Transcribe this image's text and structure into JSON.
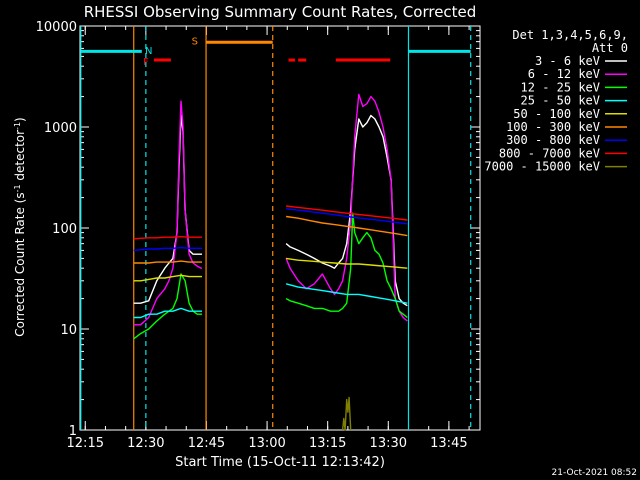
{
  "chart_data": {
    "type": "line",
    "title": "RHESSI Observing Summary Count Rates, Corrected",
    "xlabel": "Start Time (15-Oct-11 12:13:42)",
    "ylabel_main": "Corrected Count Rate (s",
    "ylabel_sup1": "-1",
    "ylabel_mid": " detector",
    "ylabel_sup2": "-1",
    "ylabel_end": ")",
    "x_scale": "time (minutes after 12:13:42)",
    "xlim": [
      0,
      99
    ],
    "y_scale": "log",
    "ylim": [
      1,
      10000
    ],
    "x_ticks": [
      {
        "t": 1.3,
        "label": "12:15"
      },
      {
        "t": 16.3,
        "label": "12:30"
      },
      {
        "t": 31.3,
        "label": "12:45"
      },
      {
        "t": 46.3,
        "label": "13:00"
      },
      {
        "t": 61.3,
        "label": "13:15"
      },
      {
        "t": 76.3,
        "label": "13:30"
      },
      {
        "t": 91.3,
        "label": "13:45"
      }
    ],
    "y_ticks": [
      {
        "v": 1,
        "label": "1"
      },
      {
        "v": 10,
        "label": "10"
      },
      {
        "v": 100,
        "label": "100"
      },
      {
        "v": 1000,
        "label": "1000"
      },
      {
        "v": 10000,
        "label": "10000"
      }
    ],
    "legend_title": "Det 1,3,4,5,6,9,",
    "legend_subtitle": "Att 0",
    "legend_position": "right",
    "date_stamp": "21-Oct-2021 08:52",
    "series": [
      {
        "name": "3 - 6 keV",
        "color": "#ffffff",
        "x": [
          13.3,
          15,
          17,
          19,
          21,
          22,
          23,
          24,
          24.5,
          25,
          25.5,
          26,
          27,
          28,
          29,
          30,
          30.2
        ],
        "y": [
          18,
          18,
          19,
          30,
          40,
          45,
          50,
          90,
          400,
          1300,
          900,
          150,
          60,
          55,
          55,
          55,
          55
        ]
      },
      {
        "name": "",
        "color": "#ffffff",
        "x": [
          51,
          52,
          54,
          56,
          58,
          60,
          62,
          63,
          64,
          65,
          66,
          67,
          68,
          69,
          70,
          71,
          72,
          73,
          74,
          75,
          76,
          77,
          78,
          79,
          80,
          81
        ],
        "y": [
          70,
          65,
          60,
          55,
          50,
          45,
          42,
          40,
          45,
          50,
          70,
          150,
          600,
          1200,
          1000,
          1100,
          1300,
          1200,
          1000,
          800,
          500,
          300,
          30,
          20,
          18,
          17
        ]
      },
      {
        "name": "6 - 12 keV",
        "color": "#ff00ff",
        "x": [
          13.3,
          15,
          17,
          19,
          21,
          22,
          23,
          24,
          24.5,
          25,
          25.5,
          26,
          27,
          28,
          29,
          30,
          30.2
        ],
        "y": [
          11,
          11,
          13,
          20,
          25,
          30,
          40,
          90,
          500,
          1800,
          1000,
          150,
          55,
          45,
          42,
          40,
          40
        ]
      },
      {
        "name": "",
        "color": "#ff00ff",
        "x": [
          51,
          52,
          54,
          56,
          58,
          60,
          62,
          63,
          64,
          65,
          66,
          67,
          68,
          69,
          70,
          71,
          72,
          73,
          74,
          75,
          76,
          77,
          78,
          79,
          80,
          81
        ],
        "y": [
          50,
          40,
          30,
          25,
          28,
          35,
          25,
          22,
          25,
          30,
          50,
          120,
          800,
          2100,
          1600,
          1700,
          2000,
          1800,
          1400,
          1000,
          600,
          300,
          20,
          15,
          13,
          12
        ]
      },
      {
        "name": "12 - 25 keV",
        "color": "#00ff00",
        "x": [
          13.3,
          15,
          17,
          19,
          21,
          22,
          23,
          24,
          25,
          26,
          27,
          28,
          29,
          30,
          30.2
        ],
        "y": [
          8,
          9,
          10,
          12,
          14,
          15,
          16,
          20,
          35,
          30,
          18,
          15,
          14,
          14,
          14
        ]
      },
      {
        "name": "",
        "color": "#00ff00",
        "x": [
          51,
          52,
          54,
          56,
          58,
          60,
          62,
          64,
          65,
          66,
          67,
          67.5,
          68,
          69,
          70,
          71,
          72,
          73,
          74,
          75,
          76,
          77,
          78,
          79,
          80,
          81
        ],
        "y": [
          20,
          19,
          18,
          17,
          16,
          16,
          15,
          15,
          16,
          18,
          40,
          140,
          90,
          70,
          80,
          90,
          80,
          60,
          55,
          45,
          30,
          25,
          20,
          15,
          14,
          13
        ]
      },
      {
        "name": "25 - 50 keV",
        "color": "#00ffff",
        "x": [
          13.3,
          15,
          17,
          19,
          21,
          23,
          25,
          27,
          29,
          30.2
        ],
        "y": [
          13,
          13,
          14,
          14,
          15,
          15,
          16,
          15,
          15,
          15
        ]
      },
      {
        "name": "",
        "color": "#00ffff",
        "x": [
          51,
          54,
          57,
          60,
          63,
          66,
          69,
          72,
          75,
          78,
          81
        ],
        "y": [
          28,
          26,
          25,
          24,
          23,
          22,
          22,
          21,
          20,
          19,
          18
        ]
      },
      {
        "name": "50 - 100 keV",
        "color": "#dddd00",
        "x": [
          13.3,
          15,
          17,
          19,
          21,
          23,
          25,
          27,
          29,
          30.2
        ],
        "y": [
          30,
          30,
          31,
          32,
          32,
          33,
          34,
          33,
          33,
          33
        ]
      },
      {
        "name": "",
        "color": "#dddd00",
        "x": [
          51,
          54,
          57,
          60,
          63,
          66,
          69,
          72,
          75,
          78,
          81
        ],
        "y": [
          50,
          48,
          47,
          46,
          45,
          44,
          44,
          43,
          42,
          41,
          40
        ]
      },
      {
        "name": "100 - 300 keV",
        "color": "#ff8800",
        "x": [
          13.3,
          15,
          17,
          19,
          21,
          23,
          25,
          27,
          29,
          30.2
        ],
        "y": [
          45,
          45,
          45,
          46,
          46,
          46,
          47,
          46,
          46,
          46
        ]
      },
      {
        "name": "",
        "color": "#ff8800",
        "x": [
          51,
          54,
          57,
          60,
          63,
          66,
          69,
          72,
          75,
          78,
          81
        ],
        "y": [
          130,
          125,
          118,
          112,
          108,
          104,
          100,
          96,
          92,
          88,
          84
        ]
      },
      {
        "name": "300 - 800 keV",
        "color": "#0000ff",
        "x": [
          13.3,
          15,
          17,
          19,
          21,
          23,
          25,
          27,
          29,
          30.2
        ],
        "y": [
          60,
          61,
          62,
          62,
          63,
          63,
          64,
          63,
          63,
          63
        ]
      },
      {
        "name": "",
        "color": "#0000ff",
        "x": [
          51,
          54,
          57,
          60,
          63,
          66,
          69,
          72,
          75,
          78,
          81
        ],
        "y": [
          155,
          150,
          145,
          140,
          135,
          130,
          126,
          122,
          118,
          114,
          110
        ]
      },
      {
        "name": "800 - 7000 keV",
        "color": "#ff0000",
        "x": [
          13.3,
          15,
          17,
          19,
          21,
          23,
          25,
          27,
          29,
          30.2
        ],
        "y": [
          78,
          79,
          80,
          80,
          81,
          81,
          82,
          81,
          81,
          81
        ]
      },
      {
        "name": "",
        "color": "#ff0000",
        "x": [
          51,
          54,
          57,
          60,
          63,
          66,
          69,
          72,
          75,
          78,
          81
        ],
        "y": [
          165,
          160,
          155,
          150,
          145,
          140,
          136,
          132,
          128,
          124,
          120
        ]
      },
      {
        "name": "7000 - 15000 keV",
        "color": "#808000",
        "x": [
          65,
          65.3,
          65.6,
          66,
          66.3,
          66.6,
          67
        ],
        "y": [
          1,
          1.3,
          1,
          2,
          1.5,
          2.1,
          1
        ]
      }
    ],
    "flag_bars": [
      {
        "label": "",
        "color": "#00e5e5",
        "x0": 0.2,
        "x1": 15.3,
        "y": 5600
      },
      {
        "label": "",
        "color": "#00e5e5",
        "x0": 81.3,
        "x1": 96.7,
        "y": 5600
      },
      {
        "label": "S",
        "color": "#ff8800",
        "x0": 31.2,
        "x1": 47.7,
        "y": 6900
      },
      {
        "label": "F",
        "color": "#ff0000",
        "x0": 18.3,
        "x1": 22.5,
        "y": 4600
      },
      {
        "label": "",
        "color": "#ff0000",
        "x0": 51.6,
        "x1": 53.2,
        "y": 4600
      },
      {
        "label": "",
        "color": "#ff0000",
        "x0": 54.0,
        "x1": 56.0,
        "y": 4600
      },
      {
        "label": "",
        "color": "#ff0000",
        "x0": 63.3,
        "x1": 76.8,
        "y": 4600
      }
    ],
    "flag_letters": [
      {
        "text": "N",
        "color": "#00e5e5",
        "t": 17.0,
        "y": 5800
      },
      {
        "text": "S",
        "color": "#ff8800",
        "t": 28.4,
        "y": 7200
      },
      {
        "text": "F",
        "color": "#ff0000",
        "t": 16.3,
        "y": 4500
      }
    ],
    "vlines": [
      {
        "t": 0.2,
        "color": "#00e5e5",
        "dash": false
      },
      {
        "t": 13.3,
        "color": "#ff8800",
        "dash": false
      },
      {
        "t": 16.3,
        "color": "#00e5e5",
        "dash": true
      },
      {
        "t": 31.2,
        "color": "#ff8800",
        "dash": false
      },
      {
        "t": 47.7,
        "color": "#ff8800",
        "dash": true
      },
      {
        "t": 81.3,
        "color": "#00e5e5",
        "dash": false
      },
      {
        "t": 96.7,
        "color": "#00e5e5",
        "dash": true
      }
    ]
  }
}
